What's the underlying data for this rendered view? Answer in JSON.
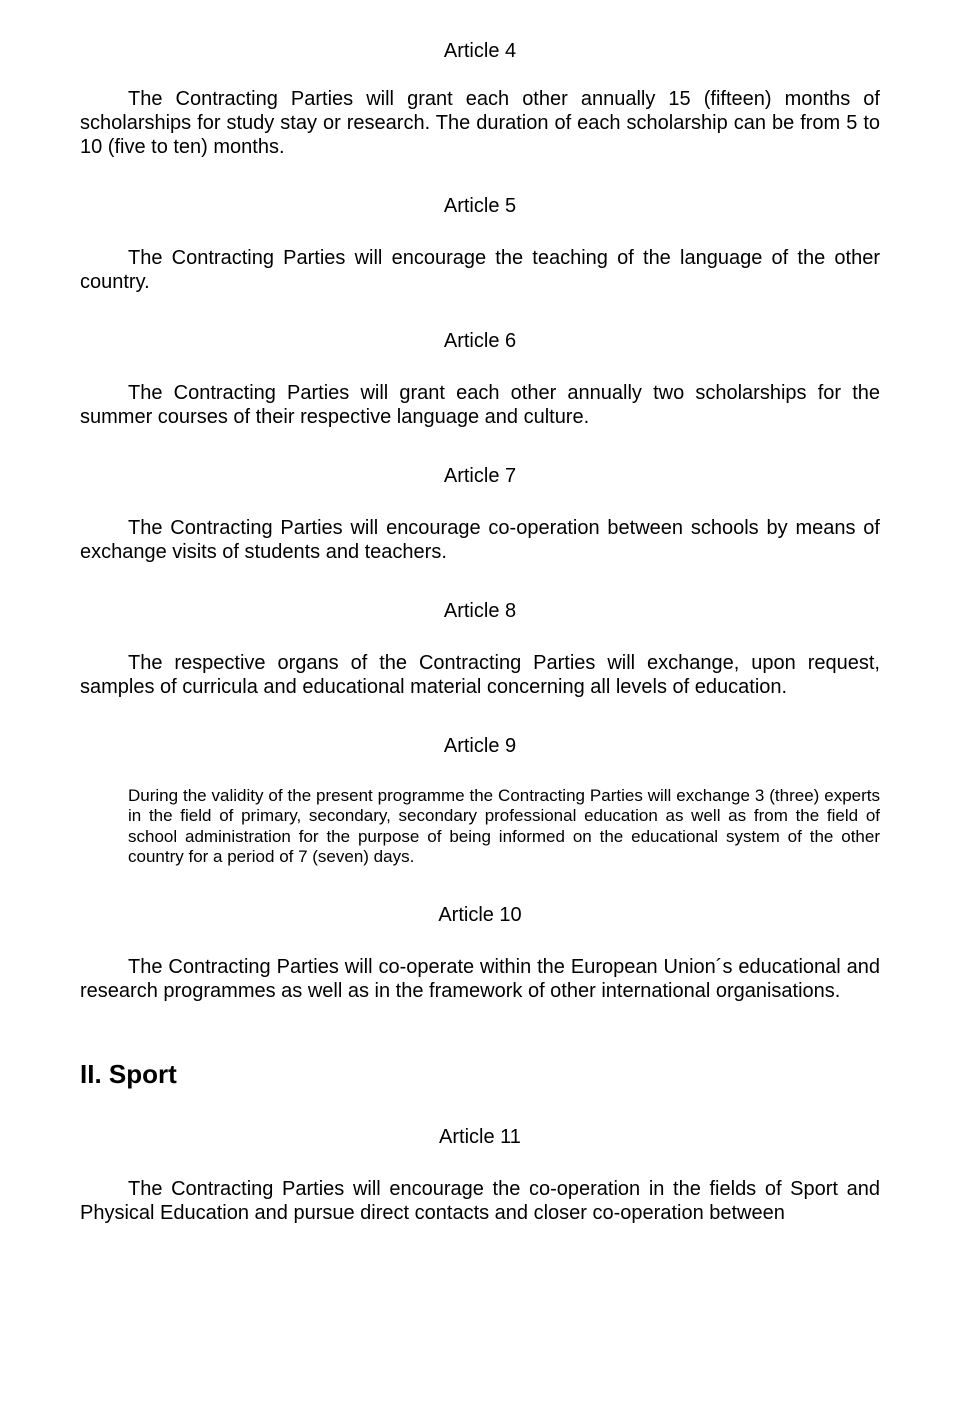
{
  "article4": {
    "heading": "Article 4",
    "text": "The Contracting Parties will grant each other annually 15 (fifteen) months of scholarships for study stay or research. The duration of each scholarship can be from  5 to 10 (five to ten) months."
  },
  "article5": {
    "heading": "Article 5",
    "text": "The Contracting Parties will encourage the teaching of the language of  the other country."
  },
  "article6": {
    "heading": "Article 6",
    "text": "The Contracting Parties will grant each other annually two scholarships for the summer courses of  their  respective language and culture."
  },
  "article7": {
    "heading": "Article 7",
    "text": "The Contracting Parties will encourage co-operation  between schools by means of exchange visits of students and teachers."
  },
  "article8": {
    "heading": "Article 8",
    "text": "The respective organs of the Contracting Parties will exchange, upon request, samples of curricula and educational material concerning all levels of education."
  },
  "article9": {
    "heading": "Article 9",
    "text": "During the validity of the present programme the Contracting Parties will exchange 3 (three) experts in the  field of primary, secondary, secondary professional education as well as from the field of school administration for the purpose of being informed on the educational system of the other country for a period of  7 (seven) days."
  },
  "article10": {
    "heading": "Article 10",
    "text": "The Contracting Parties will co-operate within the European Union´s educational and research programmes as well as in  the framework of other international organisations."
  },
  "section2": {
    "heading": "II. Sport"
  },
  "article11": {
    "heading": "Article 11",
    "text": "The Contracting Parties will encourage the co-operation in the fields of Sport and Physical Education and pursue direct contacts and closer co-operation between"
  }
}
